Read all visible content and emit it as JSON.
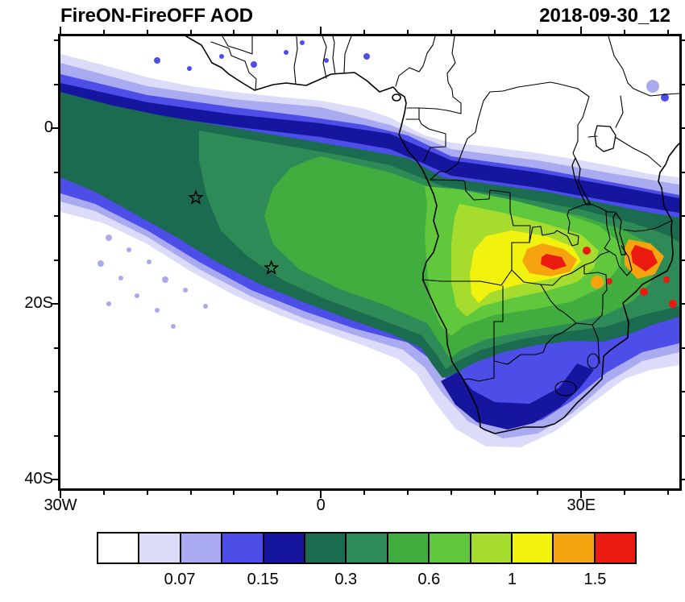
{
  "header": {
    "title": "FireON-FireOFF AOD",
    "date": "2018-09-30_12"
  },
  "axes": {
    "lon_range": [
      -30,
      41.3
    ],
    "lat_range": [
      -41,
      10.5
    ],
    "x_ticks": [
      {
        "label": "30W",
        "lon": -30
      },
      {
        "label": "0",
        "lon": 0
      },
      {
        "label": "30E",
        "lon": 30
      }
    ],
    "y_ticks": [
      {
        "label": "0",
        "lat": 0
      },
      {
        "label": "20S",
        "lat": -20
      },
      {
        "label": "40S",
        "lat": -40
      }
    ]
  },
  "colorbar": {
    "cell_colors": [
      "#FFFFFF",
      "#DCDCFA",
      "#AAAAF0",
      "#4D4DE8",
      "#15159E",
      "#1A6B50",
      "#2E8B57",
      "#42AD3F",
      "#5FC83C",
      "#A6DC2D",
      "#F2F20F",
      "#F5A40F",
      "#EB1A10"
    ],
    "tick_labels": [
      {
        "text": "0.07",
        "boundary": 2
      },
      {
        "text": "0.15",
        "boundary": 4
      },
      {
        "text": "0.3",
        "boundary": 6
      },
      {
        "text": "0.6",
        "boundary": 8
      },
      {
        "text": "1",
        "boundary": 10
      },
      {
        "text": "1.5",
        "boundary": 12
      }
    ]
  },
  "markers": [
    {
      "name": "star-marker-ascension",
      "lon": -14.4,
      "lat": -7.9
    },
    {
      "name": "star-marker-st-helena",
      "lon": -5.7,
      "lat": -15.9
    }
  ],
  "chart_data": {
    "type": "heatmap",
    "subtype": "filled-contour map (cylindrical equidistant)",
    "title": "FireON-FireOFF AOD",
    "timestamp_label": "2018-09-30_12",
    "variable": "AOD difference (FireON minus FireOFF)",
    "lon_range_deg": [
      -30,
      41.3
    ],
    "lat_range_deg": [
      -41,
      10.5
    ],
    "x_tick_labels": [
      "30W",
      "0",
      "30E"
    ],
    "y_tick_labels": [
      "0",
      "20S",
      "40S"
    ],
    "colorbar_tick_values": [
      0.07,
      0.15,
      0.3,
      0.6,
      1,
      1.5
    ],
    "n_color_cells": 13,
    "legend_position": "bottom horizontal",
    "depicted_features": [
      "biomass-burning smoke plume (AOD 0.15-0.6) stretching WNW from southern Africa across the South Atlantic toward 30W",
      "dark-blue gradient band along the northern plume edge near the equator",
      "AOD maxima above 1 (yellow/orange/red) over Zambia, Malawi and Mozambique",
      "blue comma-shaped plume wrapping around South Africa and the Cape",
      "two open star markers in the South Atlantic at approx (14.4W, 7.9S) and (5.7W, 15.9S)"
    ]
  }
}
